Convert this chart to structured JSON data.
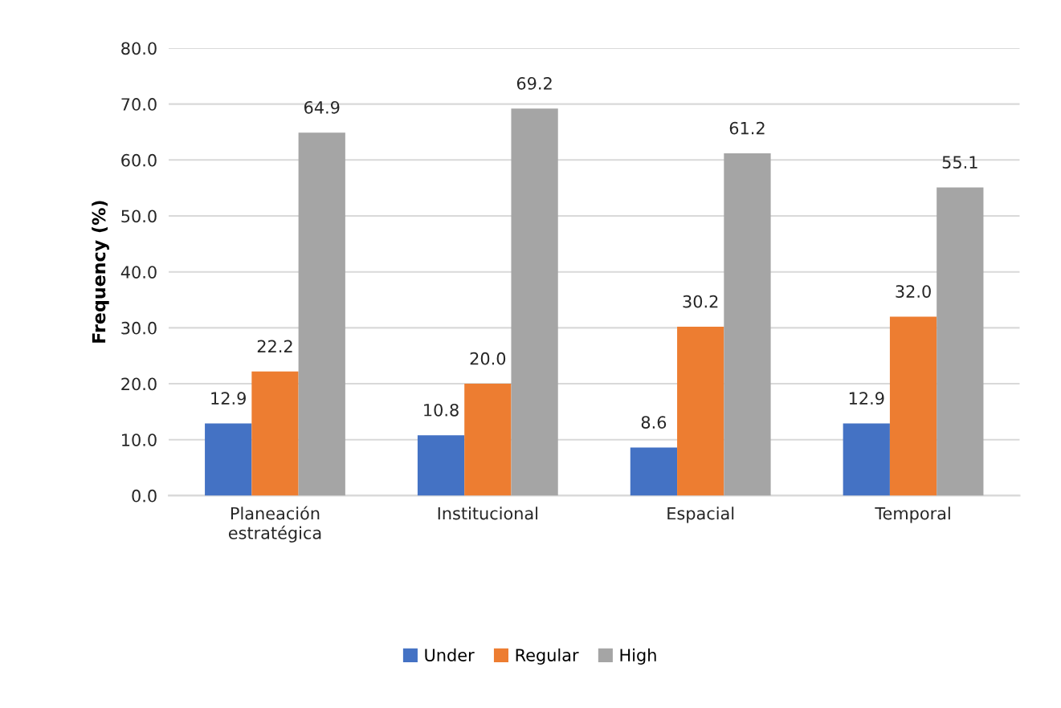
{
  "chart_data": {
    "type": "bar",
    "ylabel": "Frequency (%)",
    "categories": [
      "Planeación\nestratégica",
      "Institucional",
      "Espacial",
      "Temporal"
    ],
    "series": [
      {
        "name": "Under",
        "color": "#4472c4",
        "values": [
          12.9,
          10.8,
          8.6,
          12.9
        ],
        "value_labels": [
          "12.9",
          "10.8",
          "8.6",
          "12.9"
        ]
      },
      {
        "name": "Regular",
        "color": "#ed7d31",
        "values": [
          22.2,
          20.0,
          30.2,
          32.0
        ],
        "value_labels": [
          "22.2",
          "20.0",
          "30.2",
          "32.0"
        ]
      },
      {
        "name": "High",
        "color": "#a5a5a5",
        "values": [
          64.9,
          69.2,
          61.2,
          55.1
        ],
        "value_labels": [
          "64.9",
          "69.2",
          "61.2",
          "55.1"
        ]
      }
    ],
    "ylim": [
      0,
      80
    ],
    "yticks": [
      {
        "value": 0,
        "label": "0.0"
      },
      {
        "value": 10,
        "label": "10.0"
      },
      {
        "value": 20,
        "label": "20.0"
      },
      {
        "value": 30,
        "label": "30.0"
      },
      {
        "value": 40,
        "label": "40.0"
      },
      {
        "value": 50,
        "label": "50.0"
      },
      {
        "value": 60,
        "label": "60.0"
      },
      {
        "value": 70,
        "label": "70.0"
      },
      {
        "value": 80,
        "label": "80.0"
      }
    ],
    "grid": "y",
    "legend": "bottom"
  }
}
